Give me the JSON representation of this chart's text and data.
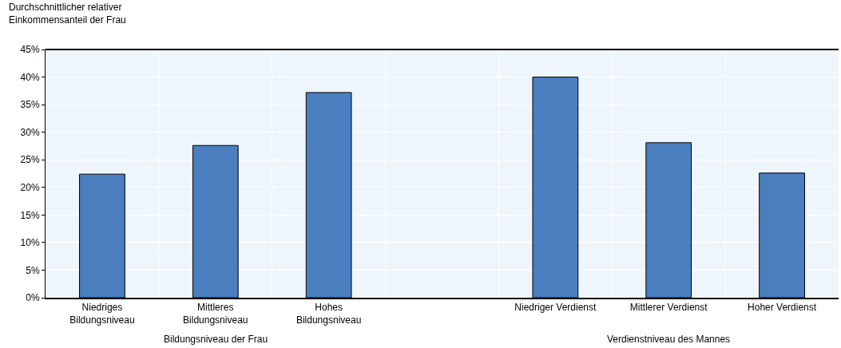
{
  "chart_data": {
    "type": "bar",
    "ylabel": "Durchschnittlicher relativer\nEinkommensanteil der Frau",
    "categories": [
      "Niedriges\nBildungsniveau",
      "Mittleres\nBildungsniveau",
      "Hohes\nBildungsniveau",
      null,
      "Niedriger Verdienst",
      "Mittlerer Verdienst",
      "Hoher Verdienst"
    ],
    "values": [
      22.4,
      27.6,
      37.2,
      null,
      40.0,
      28.1,
      22.6
    ],
    "color": "#4a7ebf",
    "ylim": [
      0,
      45
    ],
    "yticks": [
      {
        "value": 0,
        "label": "0%"
      },
      {
        "value": 5,
        "label": "5%"
      },
      {
        "value": 10,
        "label": "10%"
      },
      {
        "value": 15,
        "label": "15%"
      },
      {
        "value": 20,
        "label": "20%"
      },
      {
        "value": 25,
        "label": "25%"
      },
      {
        "value": 30,
        "label": "30%"
      },
      {
        "value": 35,
        "label": "35%"
      },
      {
        "value": 40,
        "label": "40%"
      },
      {
        "value": 45,
        "label": "45%"
      }
    ],
    "grid": true,
    "annotations": [
      "Bildungsniveau der Frau",
      "Verdienstniveau des Mannes"
    ]
  }
}
